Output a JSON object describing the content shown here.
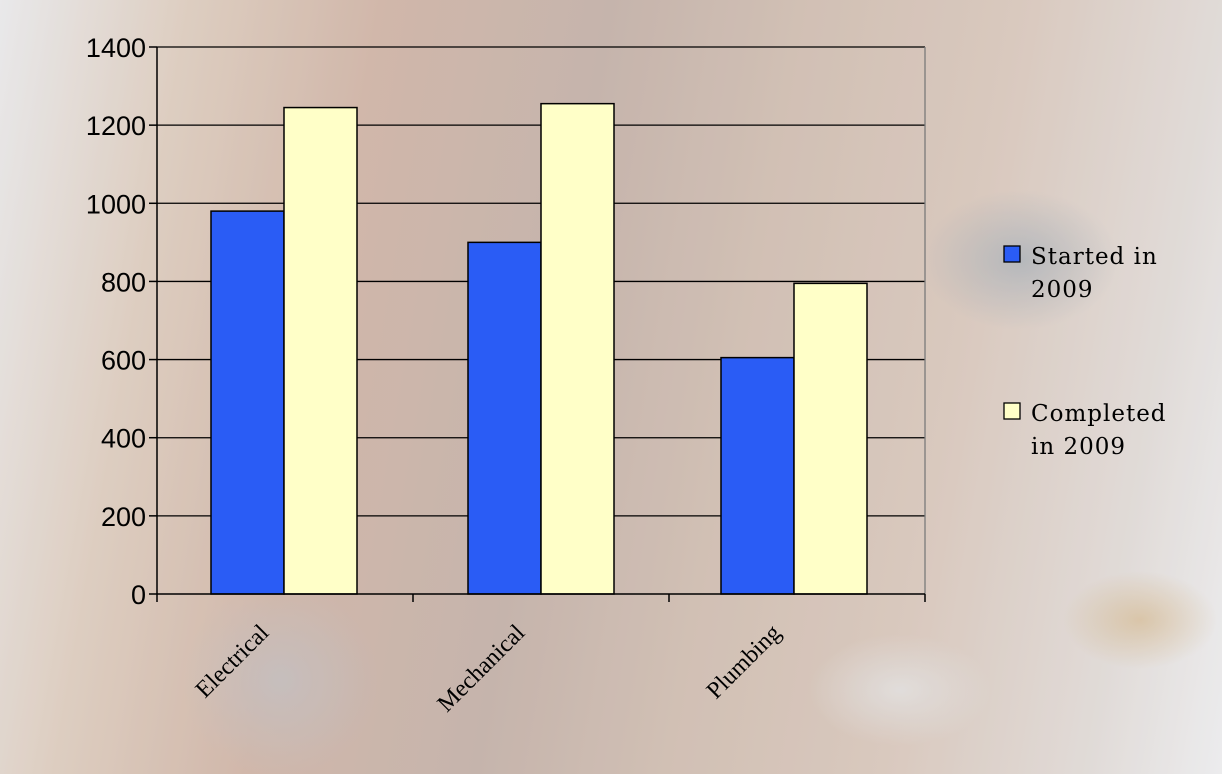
{
  "chart_data": {
    "type": "bar",
    "categories": [
      "Electrical",
      "Mechanical",
      "Plumbing"
    ],
    "series": [
      {
        "name": "Started in 2009",
        "name_lines": [
          "Started in",
          "2009"
        ],
        "values": [
          980,
          900,
          605
        ],
        "color": "#2a5cf5"
      },
      {
        "name": "Completed in 2009",
        "name_lines": [
          "Completed",
          "in 2009"
        ],
        "values": [
          1245,
          1255,
          795
        ],
        "color": "#ffffc8"
      }
    ],
    "ylim": [
      0,
      1400
    ],
    "yticks": [
      0,
      200,
      400,
      600,
      800,
      1000,
      1200,
      1400
    ],
    "grid": true,
    "legend": "right",
    "title": "",
    "xlabel": "",
    "ylabel": ""
  }
}
